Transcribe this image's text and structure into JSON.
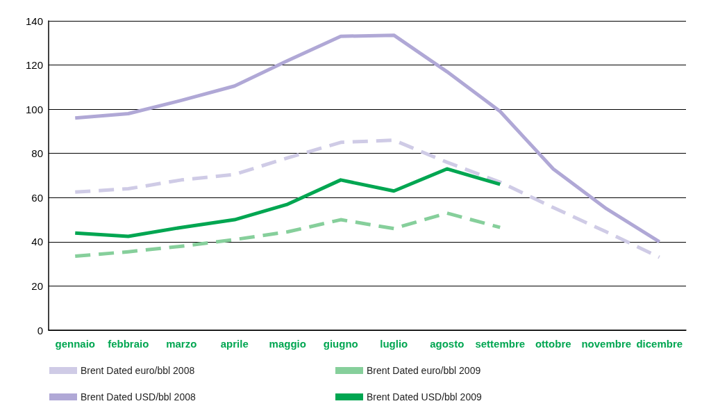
{
  "chart_data": {
    "type": "line",
    "categories": [
      "gennaio",
      "febbraio",
      "marzo",
      "aprile",
      "maggio",
      "giugno",
      "luglio",
      "agosto",
      "settembre",
      "ottobre",
      "novembre",
      "dicembre"
    ],
    "series": [
      {
        "name": "Brent Dated euro/bbl 2008",
        "color": "#cfcbe6",
        "line_style": "dashed",
        "values": [
          62.5,
          64,
          68,
          70.5,
          78,
          85,
          86,
          76,
          67,
          55.5,
          44.5,
          33
        ]
      },
      {
        "name": "Brent Dated euro/bbl 2009",
        "color": "#86cf9b",
        "line_style": "dashed",
        "values": [
          33.5,
          35.5,
          38,
          41,
          44.5,
          50,
          46,
          53,
          46.5,
          null,
          null,
          null
        ]
      },
      {
        "name": "Brent Dated USD/bbl 2008",
        "color": "#b0a8d6",
        "line_style": "solid",
        "values": [
          96,
          98,
          104,
          110.5,
          122,
          133,
          133.5,
          117,
          99,
          73,
          55,
          40
        ]
      },
      {
        "name": "Brent Dated USD/bbl 2009",
        "color": "#00a651",
        "line_style": "solid",
        "values": [
          44,
          42.5,
          46.5,
          50,
          57,
          68,
          63,
          73,
          66,
          null,
          null,
          null
        ]
      }
    ],
    "ylim": [
      0,
      140
    ],
    "yticks": [
      0,
      20,
      40,
      60,
      80,
      100,
      120,
      140
    ],
    "grid": "y",
    "legend": "bottom",
    "marker": "none"
  }
}
